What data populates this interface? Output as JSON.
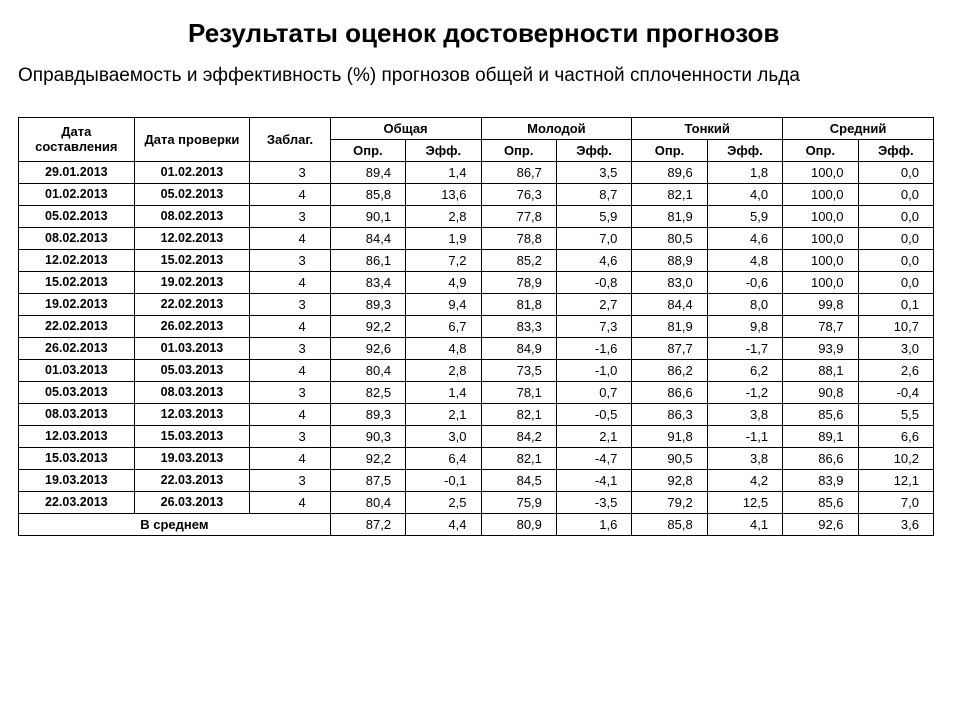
{
  "title": "Результаты оценок достоверности прогнозов",
  "subtitle": "Оправдываемость и эффективность (%) прогнозов общей и частной сплоченности льда",
  "columns": {
    "date1": "Дата составления",
    "date2": "Дата проверки",
    "zablag": "Заблаг.",
    "groups": [
      "Общая",
      "Молодой",
      "Тонкий",
      "Средний"
    ],
    "sub": [
      "Опр.",
      "Эфф."
    ]
  },
  "rows": [
    {
      "d1": "29.01.2013",
      "d2": "01.02.2013",
      "z": "3",
      "v": [
        "89,4",
        "1,4",
        "86,7",
        "3,5",
        "89,6",
        "1,8",
        "100,0",
        "0,0"
      ]
    },
    {
      "d1": "01.02.2013",
      "d2": "05.02.2013",
      "z": "4",
      "v": [
        "85,8",
        "13,6",
        "76,3",
        "8,7",
        "82,1",
        "4,0",
        "100,0",
        "0,0"
      ]
    },
    {
      "d1": "05.02.2013",
      "d2": "08.02.2013",
      "z": "3",
      "v": [
        "90,1",
        "2,8",
        "77,8",
        "5,9",
        "81,9",
        "5,9",
        "100,0",
        "0,0"
      ]
    },
    {
      "d1": "08.02.2013",
      "d2": "12.02.2013",
      "z": "4",
      "v": [
        "84,4",
        "1,9",
        "78,8",
        "7,0",
        "80,5",
        "4,6",
        "100,0",
        "0,0"
      ]
    },
    {
      "d1": "12.02.2013",
      "d2": "15.02.2013",
      "z": "3",
      "v": [
        "86,1",
        "7,2",
        "85,2",
        "4,6",
        "88,9",
        "4,8",
        "100,0",
        "0,0"
      ]
    },
    {
      "d1": "15.02.2013",
      "d2": "19.02.2013",
      "z": "4",
      "v": [
        "83,4",
        "4,9",
        "78,9",
        "-0,8",
        "83,0",
        "-0,6",
        "100,0",
        "0,0"
      ]
    },
    {
      "d1": "19.02.2013",
      "d2": "22.02.2013",
      "z": "3",
      "v": [
        "89,3",
        "9,4",
        "81,8",
        "2,7",
        "84,4",
        "8,0",
        "99,8",
        "0,1"
      ]
    },
    {
      "d1": "22.02.2013",
      "d2": "26.02.2013",
      "z": "4",
      "v": [
        "92,2",
        "6,7",
        "83,3",
        "7,3",
        "81,9",
        "9,8",
        "78,7",
        "10,7"
      ]
    },
    {
      "d1": "26.02.2013",
      "d2": "01.03.2013",
      "z": "3",
      "v": [
        "92,6",
        "4,8",
        "84,9",
        "-1,6",
        "87,7",
        "-1,7",
        "93,9",
        "3,0"
      ]
    },
    {
      "d1": "01.03.2013",
      "d2": "05.03.2013",
      "z": "4",
      "v": [
        "80,4",
        "2,8",
        "73,5",
        "-1,0",
        "86,2",
        "6,2",
        "88,1",
        "2,6"
      ]
    },
    {
      "d1": "05.03.2013",
      "d2": "08.03.2013",
      "z": "3",
      "v": [
        "82,5",
        "1,4",
        "78,1",
        "0,7",
        "86,6",
        "-1,2",
        "90,8",
        "-0,4"
      ]
    },
    {
      "d1": "08.03.2013",
      "d2": "12.03.2013",
      "z": "4",
      "v": [
        "89,3",
        "2,1",
        "82,1",
        "-0,5",
        "86,3",
        "3,8",
        "85,6",
        "5,5"
      ]
    },
    {
      "d1": "12.03.2013",
      "d2": "15.03.2013",
      "z": "3",
      "v": [
        "90,3",
        "3,0",
        "84,2",
        "2,1",
        "91,8",
        "-1,1",
        "89,1",
        "6,6"
      ]
    },
    {
      "d1": "15.03.2013",
      "d2": "19.03.2013",
      "z": "4",
      "v": [
        "92,2",
        "6,4",
        "82,1",
        "-4,7",
        "90,5",
        "3,8",
        "86,6",
        "10,2"
      ]
    },
    {
      "d1": "19.03.2013",
      "d2": "22.03.2013",
      "z": "3",
      "v": [
        "87,5",
        "-0,1",
        "84,5",
        "-4,1",
        "92,8",
        "4,2",
        "83,9",
        "12,1"
      ]
    },
    {
      "d1": "22.03.2013",
      "d2": "26.03.2013",
      "z": "4",
      "v": [
        "80,4",
        "2,5",
        "75,9",
        "-3,5",
        "79,2",
        "12,5",
        "85,6",
        "7,0"
      ]
    }
  ],
  "average": {
    "label": "В среднем",
    "v": [
      "87,2",
      "4,4",
      "80,9",
      "1,6",
      "85,8",
      "4,1",
      "92,6",
      "3,6"
    ]
  }
}
